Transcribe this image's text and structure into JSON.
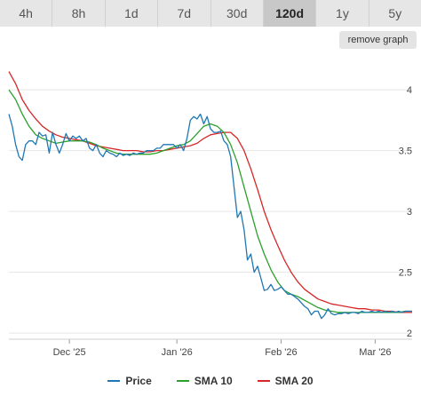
{
  "tabs": [
    {
      "label": "4h",
      "active": false
    },
    {
      "label": "8h",
      "active": false
    },
    {
      "label": "1d",
      "active": false
    },
    {
      "label": "7d",
      "active": false
    },
    {
      "label": "30d",
      "active": false
    },
    {
      "label": "120d",
      "active": true
    },
    {
      "label": "1y",
      "active": false
    },
    {
      "label": "5y",
      "active": false
    }
  ],
  "remove_graph_label": "remove graph",
  "colors": {
    "price": "#1f77b4",
    "sma10": "#2ca02c",
    "sma20": "#d62728",
    "grid": "#e6e6e6"
  },
  "chart_data": {
    "type": "line",
    "ylim": [
      1.95,
      4.3
    ],
    "yticks": [
      "4",
      "3.5",
      "3",
      "2.5",
      "2"
    ],
    "ytick_values": [
      4,
      3.5,
      3,
      2.5,
      2
    ],
    "x_range": [
      0,
      120
    ],
    "xticks": [
      {
        "label": "Dec '25",
        "x": 18
      },
      {
        "label": "Jan '26",
        "x": 50
      },
      {
        "label": "Feb '26",
        "x": 81
      },
      {
        "label": "Mar '26",
        "x": 109
      }
    ],
    "grid": true,
    "legend_position": "bottom",
    "series": [
      {
        "name": "Price",
        "color": "#1f77b4",
        "x": [
          0,
          1,
          2,
          3,
          4,
          5,
          6,
          7,
          8,
          9,
          10,
          11,
          12,
          13,
          14,
          15,
          16,
          17,
          18,
          19,
          20,
          21,
          22,
          23,
          24,
          25,
          26,
          27,
          28,
          29,
          30,
          31,
          32,
          33,
          34,
          35,
          36,
          37,
          38,
          39,
          40,
          41,
          42,
          43,
          44,
          45,
          46,
          47,
          48,
          49,
          50,
          51,
          52,
          53,
          54,
          55,
          56,
          57,
          58,
          59,
          60,
          61,
          62,
          63,
          64,
          65,
          66,
          67,
          68,
          69,
          70,
          71,
          72,
          73,
          74,
          75,
          76,
          77,
          78,
          79,
          80,
          81,
          82,
          83,
          84,
          85,
          86,
          87,
          88,
          89,
          90,
          91,
          92,
          93,
          94,
          95,
          96,
          97,
          98,
          99,
          100,
          101,
          102,
          103,
          104,
          105,
          106,
          107,
          108,
          109,
          110,
          111,
          112,
          113,
          114,
          115,
          116,
          117,
          118,
          119,
          120
        ],
        "values": [
          3.8,
          3.7,
          3.55,
          3.45,
          3.42,
          3.55,
          3.58,
          3.58,
          3.55,
          3.65,
          3.62,
          3.63,
          3.48,
          3.65,
          3.55,
          3.48,
          3.55,
          3.64,
          3.58,
          3.62,
          3.6,
          3.62,
          3.58,
          3.6,
          3.52,
          3.5,
          3.55,
          3.48,
          3.45,
          3.5,
          3.48,
          3.47,
          3.45,
          3.48,
          3.46,
          3.47,
          3.46,
          3.48,
          3.47,
          3.48,
          3.48,
          3.5,
          3.5,
          3.5,
          3.52,
          3.52,
          3.55,
          3.55,
          3.55,
          3.55,
          3.52,
          3.55,
          3.5,
          3.6,
          3.75,
          3.78,
          3.76,
          3.8,
          3.72,
          3.78,
          3.68,
          3.65,
          3.65,
          3.66,
          3.58,
          3.55,
          3.45,
          3.2,
          2.95,
          3.0,
          2.85,
          2.6,
          2.65,
          2.5,
          2.55,
          2.45,
          2.35,
          2.36,
          2.4,
          2.35,
          2.36,
          2.38,
          2.35,
          2.32,
          2.32,
          2.3,
          2.28,
          2.25,
          2.22,
          2.2,
          2.15,
          2.18,
          2.18,
          2.12,
          2.15,
          2.2,
          2.16,
          2.15,
          2.16,
          2.16,
          2.17,
          2.16,
          2.17,
          2.17,
          2.16,
          2.18,
          2.17,
          2.17,
          2.18,
          2.17,
          2.18,
          2.17,
          2.18,
          2.17,
          2.18,
          2.17,
          2.18,
          2.17,
          2.18,
          2.18,
          2.18
        ]
      },
      {
        "name": "SMA 10",
        "color": "#2ca02c",
        "x": [
          0,
          2,
          4,
          6,
          8,
          10,
          12,
          14,
          16,
          18,
          20,
          22,
          24,
          26,
          28,
          30,
          32,
          34,
          36,
          38,
          40,
          42,
          44,
          46,
          48,
          50,
          52,
          54,
          56,
          58,
          60,
          62,
          64,
          66,
          68,
          70,
          72,
          74,
          76,
          78,
          80,
          82,
          84,
          86,
          88,
          90,
          92,
          94,
          96,
          98,
          100,
          102,
          104,
          106,
          108,
          110,
          112,
          114,
          116,
          118,
          120
        ],
        "values": [
          4.0,
          3.92,
          3.8,
          3.7,
          3.63,
          3.6,
          3.58,
          3.56,
          3.57,
          3.58,
          3.58,
          3.58,
          3.57,
          3.55,
          3.52,
          3.5,
          3.48,
          3.47,
          3.47,
          3.47,
          3.47,
          3.47,
          3.48,
          3.5,
          3.52,
          3.54,
          3.55,
          3.58,
          3.64,
          3.7,
          3.72,
          3.7,
          3.65,
          3.55,
          3.4,
          3.2,
          3.0,
          2.8,
          2.65,
          2.52,
          2.42,
          2.35,
          2.32,
          2.3,
          2.27,
          2.24,
          2.21,
          2.19,
          2.18,
          2.17,
          2.17,
          2.17,
          2.17,
          2.17,
          2.17,
          2.17,
          2.17,
          2.17,
          2.17,
          2.18,
          2.18
        ]
      },
      {
        "name": "SMA 20",
        "color": "#d62728",
        "x": [
          0,
          2,
          4,
          6,
          8,
          10,
          12,
          14,
          16,
          18,
          20,
          22,
          24,
          26,
          28,
          30,
          32,
          34,
          36,
          38,
          40,
          42,
          44,
          46,
          48,
          50,
          52,
          54,
          56,
          58,
          60,
          62,
          64,
          66,
          68,
          70,
          72,
          74,
          76,
          78,
          80,
          82,
          84,
          86,
          88,
          90,
          92,
          94,
          96,
          98,
          100,
          102,
          104,
          106,
          108,
          110,
          112,
          114,
          116,
          118,
          120
        ],
        "values": [
          4.15,
          4.05,
          3.92,
          3.83,
          3.76,
          3.7,
          3.66,
          3.63,
          3.61,
          3.6,
          3.59,
          3.58,
          3.56,
          3.54,
          3.53,
          3.52,
          3.51,
          3.5,
          3.5,
          3.5,
          3.49,
          3.49,
          3.5,
          3.5,
          3.51,
          3.52,
          3.53,
          3.54,
          3.56,
          3.6,
          3.63,
          3.64,
          3.65,
          3.65,
          3.6,
          3.5,
          3.35,
          3.18,
          3.0,
          2.85,
          2.72,
          2.6,
          2.5,
          2.42,
          2.36,
          2.32,
          2.28,
          2.26,
          2.24,
          2.23,
          2.22,
          2.21,
          2.2,
          2.2,
          2.19,
          2.19,
          2.18,
          2.18,
          2.17,
          2.17,
          2.17
        ]
      }
    ]
  }
}
